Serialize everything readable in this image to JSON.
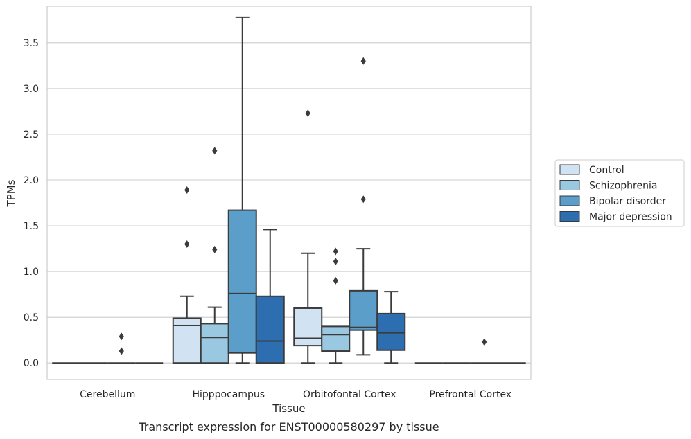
{
  "chart_data": {
    "type": "box",
    "title": "Transcript expression for ENST00000580297 by tissue",
    "xlabel": "Tissue",
    "ylabel": "TPMs",
    "ylim": [
      -0.18,
      3.9
    ],
    "yticks": [
      0.0,
      0.5,
      1.0,
      1.5,
      2.0,
      2.5,
      3.0,
      3.5
    ],
    "ytick_labels": [
      "0.0",
      "0.5",
      "1.0",
      "1.5",
      "2.0",
      "2.5",
      "3.0",
      "3.5"
    ],
    "categories": [
      "Cerebellum",
      "Hipppocampus",
      "Orbitofontal Cortex",
      "Prefrontal Cortex"
    ],
    "grid": "horizontal",
    "legend_position": "right",
    "series": [
      {
        "name": "Control",
        "color": "#d1e2f3",
        "boxes": [
          {
            "whislo": 0.0,
            "q1": 0.0,
            "med": 0.0,
            "q3": 0.0,
            "whishi": 0.0,
            "fliers": []
          },
          {
            "whislo": 0.0,
            "q1": 0.0,
            "med": 0.41,
            "q3": 0.49,
            "whishi": 0.73,
            "fliers": [
              1.3,
              1.89
            ]
          },
          {
            "whislo": 0.0,
            "q1": 0.19,
            "med": 0.27,
            "q3": 0.6,
            "whishi": 1.2,
            "fliers": [
              2.73
            ]
          },
          {
            "whislo": 0.0,
            "q1": 0.0,
            "med": 0.0,
            "q3": 0.0,
            "whishi": 0.0,
            "fliers": []
          }
        ]
      },
      {
        "name": "Schizophrenia",
        "color": "#9ac8e0",
        "boxes": [
          {
            "whislo": 0.0,
            "q1": 0.0,
            "med": 0.0,
            "q3": 0.0,
            "whishi": 0.0,
            "fliers": []
          },
          {
            "whislo": 0.0,
            "q1": 0.0,
            "med": 0.28,
            "q3": 0.43,
            "whishi": 0.61,
            "fliers": [
              1.24,
              2.32
            ]
          },
          {
            "whislo": 0.0,
            "q1": 0.13,
            "med": 0.31,
            "q3": 0.4,
            "whishi": 0.4,
            "fliers": [
              0.9,
              1.11,
              1.22
            ]
          },
          {
            "whislo": 0.0,
            "q1": 0.0,
            "med": 0.0,
            "q3": 0.0,
            "whishi": 0.0,
            "fliers": []
          }
        ]
      },
      {
        "name": "Bipolar disorder",
        "color": "#5a9ec9",
        "boxes": [
          {
            "whislo": 0.0,
            "q1": 0.0,
            "med": 0.0,
            "q3": 0.0,
            "whishi": 0.0,
            "fliers": [
              0.13,
              0.29
            ]
          },
          {
            "whislo": 0.0,
            "q1": 0.11,
            "med": 0.76,
            "q3": 1.67,
            "whishi": 3.78,
            "fliers": []
          },
          {
            "whislo": 0.09,
            "q1": 0.36,
            "med": 0.39,
            "q3": 0.79,
            "whishi": 1.25,
            "fliers": [
              1.79,
              3.3
            ]
          },
          {
            "whislo": 0.0,
            "q1": 0.0,
            "med": 0.0,
            "q3": 0.0,
            "whishi": 0.0,
            "fliers": [
              0.23
            ]
          }
        ]
      },
      {
        "name": "Major depression",
        "color": "#2d6eb0",
        "boxes": [
          {
            "whislo": 0.0,
            "q1": 0.0,
            "med": 0.0,
            "q3": 0.0,
            "whishi": 0.0,
            "fliers": []
          },
          {
            "whislo": 0.0,
            "q1": 0.0,
            "med": 0.24,
            "q3": 0.73,
            "whishi": 1.46,
            "fliers": []
          },
          {
            "whislo": 0.0,
            "q1": 0.14,
            "med": 0.33,
            "q3": 0.54,
            "whishi": 0.78,
            "fliers": []
          },
          {
            "whislo": 0.0,
            "q1": 0.0,
            "med": 0.0,
            "q3": 0.0,
            "whishi": 0.0,
            "fliers": []
          }
        ]
      }
    ]
  }
}
